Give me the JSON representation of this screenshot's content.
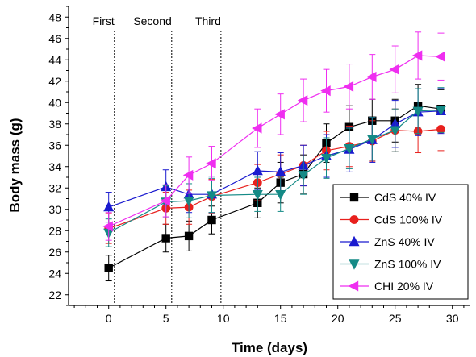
{
  "chart_data": {
    "type": "line",
    "title": "",
    "xlabel": "Time (days)",
    "ylabel": "Body mass (g)",
    "xlim": [
      -3.5,
      31.5
    ],
    "ylim": [
      21,
      49
    ],
    "xticks": [
      0,
      5,
      10,
      15,
      20,
      25,
      30
    ],
    "yticks": [
      22,
      24,
      26,
      28,
      30,
      32,
      34,
      36,
      38,
      40,
      42,
      44,
      46,
      48
    ],
    "grid": false,
    "legend_position": "lower-right",
    "annotations": [
      {
        "label": "First",
        "x": 0.5
      },
      {
        "label": "Second",
        "x": 5.5
      },
      {
        "label": "Third",
        "x": 9.8
      }
    ],
    "series": [
      {
        "name": "CdS 40% IV",
        "color": "#000000",
        "marker": "square",
        "x": [
          0,
          5,
          7,
          9,
          13,
          15,
          17,
          19,
          21,
          23,
          25,
          27,
          29
        ],
        "y": [
          24.5,
          27.3,
          27.5,
          29.0,
          30.6,
          32.5,
          33.3,
          36.2,
          37.7,
          38.3,
          38.3,
          39.7,
          39.4
        ],
        "err": [
          1.2,
          1.3,
          1.4,
          1.3,
          1.4,
          1.9,
          1.8,
          1.8,
          2.0,
          2.0,
          2.0,
          2.0,
          1.8
        ]
      },
      {
        "name": "CdS 100% IV",
        "color": "#e8201d",
        "marker": "circle",
        "x": [
          0,
          5,
          7,
          9,
          13,
          15,
          17,
          19,
          21,
          23,
          25,
          27,
          29
        ],
        "y": [
          28.2,
          30.1,
          30.2,
          31.2,
          32.5,
          33.3,
          34.1,
          35.5,
          35.9,
          36.4,
          37.4,
          37.3,
          37.5
        ],
        "err": [
          1.4,
          1.5,
          1.6,
          1.6,
          1.7,
          1.8,
          1.9,
          1.8,
          1.9,
          1.9,
          2.0,
          2.0,
          2.0
        ]
      },
      {
        "name": "ZnS 40% IV",
        "color": "#1b1bcf",
        "marker": "triangle-up",
        "x": [
          0,
          5,
          7,
          9,
          13,
          15,
          17,
          19,
          21,
          23,
          25,
          27,
          29
        ],
        "y": [
          30.2,
          32.1,
          31.4,
          31.4,
          33.6,
          33.5,
          34.1,
          35.0,
          35.6,
          36.5,
          38.0,
          39.1,
          39.2
        ],
        "err": [
          1.4,
          1.6,
          1.7,
          1.7,
          1.8,
          1.8,
          1.9,
          2.0,
          2.1,
          2.1,
          2.2,
          2.2,
          2.1
        ]
      },
      {
        "name": "ZnS 100% IV",
        "color": "#148a86",
        "marker": "triangle-down",
        "x": [
          0,
          5,
          7,
          9,
          13,
          15,
          17,
          19,
          21,
          23,
          25,
          27,
          29
        ],
        "y": [
          27.8,
          30.7,
          30.8,
          31.3,
          31.4,
          31.4,
          33.2,
          34.8,
          35.7,
          36.6,
          37.4,
          39.2,
          39.3
        ],
        "err": [
          1.3,
          1.5,
          1.6,
          1.6,
          1.6,
          1.6,
          1.8,
          1.9,
          1.9,
          2.0,
          2.0,
          2.1,
          2.1
        ]
      },
      {
        "name": "CHI 20% IV",
        "color": "#ef2ef0",
        "marker": "triangle-left",
        "x": [
          0,
          5,
          7,
          9,
          13,
          15,
          17,
          19,
          21,
          23,
          25,
          27,
          29
        ],
        "y": [
          28.4,
          30.8,
          33.2,
          34.3,
          37.6,
          38.9,
          40.2,
          41.1,
          41.5,
          42.4,
          43.1,
          44.4,
          44.3
        ],
        "err": [
          1.3,
          1.5,
          1.7,
          1.6,
          1.8,
          1.9,
          2.0,
          2.0,
          2.1,
          2.1,
          2.2,
          2.2,
          2.2
        ]
      }
    ]
  }
}
